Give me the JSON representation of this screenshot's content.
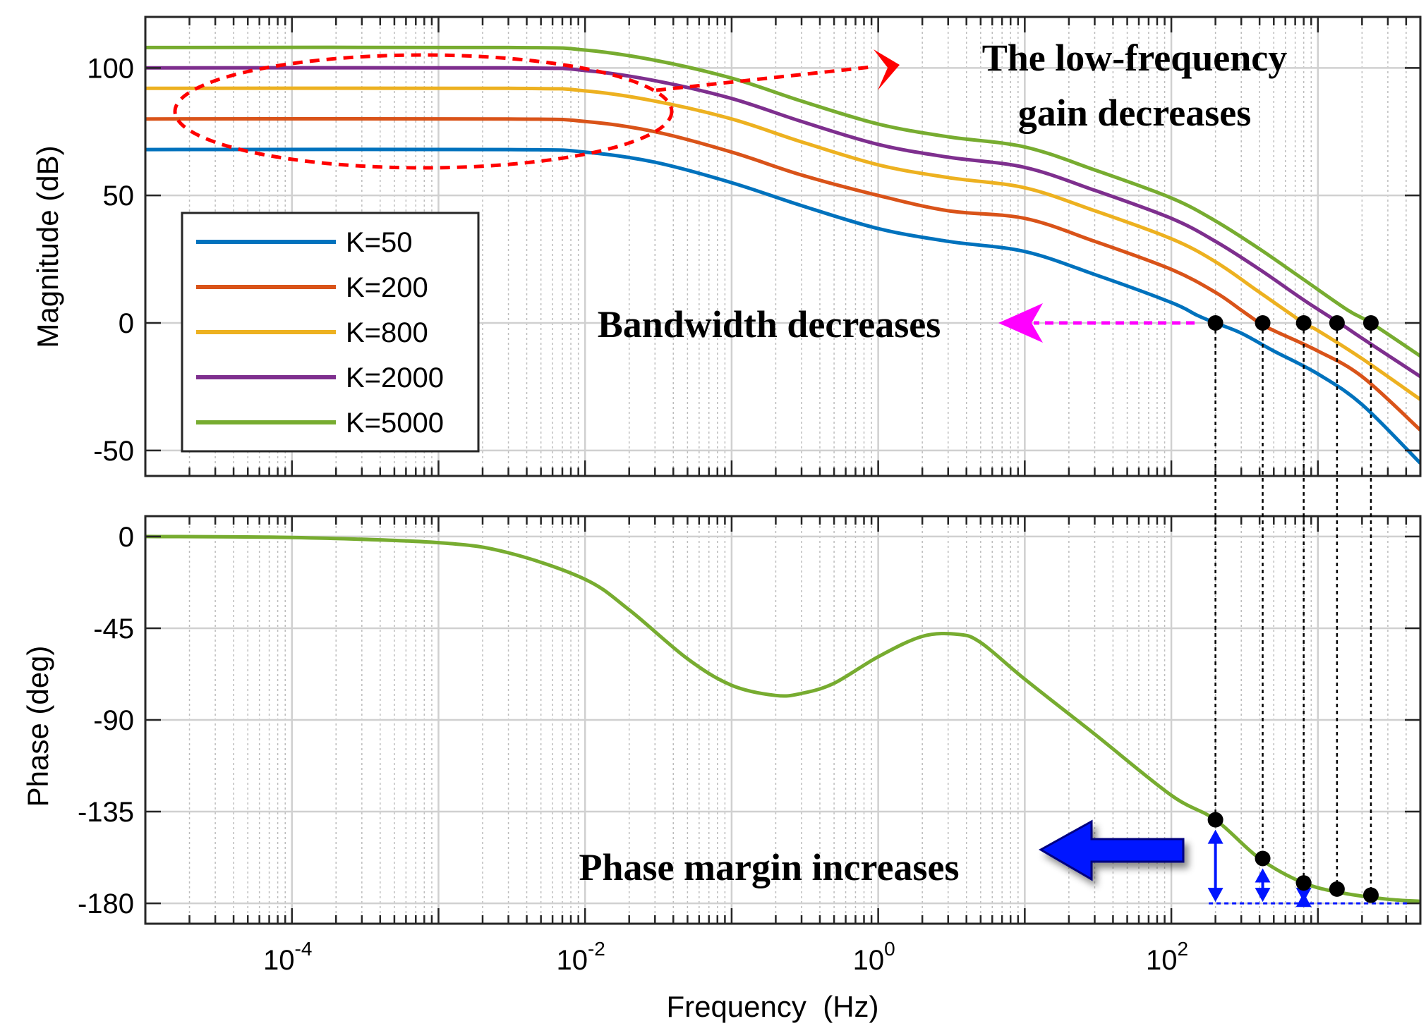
{
  "chart_data": [
    {
      "type": "line",
      "title": "",
      "xlabel": "",
      "ylabel": "Magnitude (dB)",
      "xscale": "log",
      "xlim": [
        1e-05,
        5000
      ],
      "ylim": [
        -60,
        120
      ],
      "yticks": [
        -50,
        0,
        50,
        100
      ],
      "ytick_labels": [
        "-50",
        "0",
        "50",
        "100"
      ],
      "grid": true,
      "legend_position": "left",
      "series": [
        {
          "name": "K=50",
          "color": "#0072BD",
          "x": [
            1e-05,
            0.003,
            0.01,
            0.03,
            0.1,
            0.3,
            1,
            3,
            10,
            30,
            100,
            150,
            200,
            300,
            500,
            1000,
            2000,
            5000
          ],
          "y": [
            68,
            68,
            67,
            63,
            55,
            46,
            37,
            32,
            28,
            19,
            8,
            3,
            0,
            -4,
            -11,
            -20,
            -32,
            -55
          ]
        },
        {
          "name": "K=200",
          "color": "#D95319",
          "x": [
            1e-05,
            0.003,
            0.01,
            0.03,
            0.1,
            0.3,
            1,
            3,
            10,
            30,
            100,
            200,
            300,
            400,
            500,
            1000,
            2000,
            5000
          ],
          "y": [
            80,
            80,
            79,
            75,
            67,
            58,
            50,
            44,
            41,
            32,
            21,
            12,
            5,
            0,
            -3,
            -11,
            -21,
            -42
          ]
        },
        {
          "name": "K=800",
          "color": "#EDB120",
          "x": [
            1e-05,
            0.003,
            0.01,
            0.03,
            0.1,
            0.3,
            1,
            3,
            10,
            30,
            100,
            200,
            400,
            800,
            1000,
            2000,
            5000
          ],
          "y": [
            92,
            92,
            91,
            87,
            80,
            71,
            62,
            57,
            53,
            44,
            33,
            24,
            12,
            0,
            -3,
            -14,
            -30
          ]
        },
        {
          "name": "K=2000",
          "color": "#7E2F8E",
          "x": [
            1e-05,
            0.003,
            0.01,
            0.03,
            0.1,
            0.3,
            1,
            3,
            10,
            30,
            100,
            200,
            400,
            800,
            1400,
            2000,
            5000
          ],
          "y": [
            100,
            100,
            99,
            95,
            88,
            79,
            70,
            65,
            61,
            52,
            41,
            32,
            21,
            9,
            0,
            -6,
            -21
          ]
        },
        {
          "name": "K=5000",
          "color": "#77AC30",
          "x": [
            1e-05,
            0.003,
            0.01,
            0.03,
            0.1,
            0.3,
            1,
            3,
            10,
            30,
            100,
            200,
            400,
            800,
            1600,
            2300,
            5000
          ],
          "y": [
            108,
            108,
            107,
            103,
            96,
            87,
            78,
            73,
            69,
            60,
            49,
            40,
            29,
            17,
            5,
            0,
            -13
          ]
        }
      ],
      "crossover_points": [
        {
          "x": 200,
          "y": 0
        },
        {
          "x": 420,
          "y": 0
        },
        {
          "x": 800,
          "y": 0
        },
        {
          "x": 1350,
          "y": 0
        },
        {
          "x": 2300,
          "y": 0
        }
      ],
      "annotations": [
        {
          "text_lines": [
            "The low-frequency",
            "gain decreases"
          ]
        },
        {
          "text": "Bandwidth decreases"
        }
      ]
    },
    {
      "type": "line",
      "title": "",
      "xlabel": "Frequency  (Hz)",
      "ylabel": "Phase (deg)",
      "xscale": "log",
      "xlim": [
        1e-05,
        5000
      ],
      "ylim": [
        -190,
        10
      ],
      "yticks": [
        -180,
        -135,
        -90,
        -45,
        0
      ],
      "ytick_labels": [
        "-180",
        "-135",
        "-90",
        "-45",
        "0"
      ],
      "xtick_values": [
        0.0001,
        0.01,
        1,
        100
      ],
      "xtick_labels": [
        {
          "base": "10",
          "exp": "-4"
        },
        {
          "base": "10",
          "exp": "-2"
        },
        {
          "base": "10",
          "exp": "0"
        },
        {
          "base": "10",
          "exp": "2"
        }
      ],
      "grid": true,
      "series": [
        {
          "color": "#77AC30",
          "x": [
            1e-05,
            0.0001,
            0.001,
            0.003,
            0.01,
            0.02,
            0.05,
            0.1,
            0.2,
            0.3,
            0.5,
            1,
            2,
            3.5,
            5,
            10,
            30,
            100,
            200,
            400,
            800,
            1500,
            3000,
            5000
          ],
          "y": [
            0,
            -0.5,
            -3,
            -8,
            -21,
            -36,
            -60,
            -73,
            -78,
            -77,
            -72,
            -59,
            -49,
            -48,
            -52,
            -70,
            -97,
            -127,
            -139,
            -158,
            -170,
            -175,
            -178,
            -179
          ]
        }
      ],
      "marker_points": [
        {
          "x": 200,
          "y": -139
        },
        {
          "x": 420,
          "y": -158
        },
        {
          "x": 800,
          "y": -170
        },
        {
          "x": 1350,
          "y": -173
        },
        {
          "x": 2300,
          "y": -176
        }
      ],
      "annotations": [
        {
          "text": "Phase margin increases"
        }
      ]
    }
  ]
}
